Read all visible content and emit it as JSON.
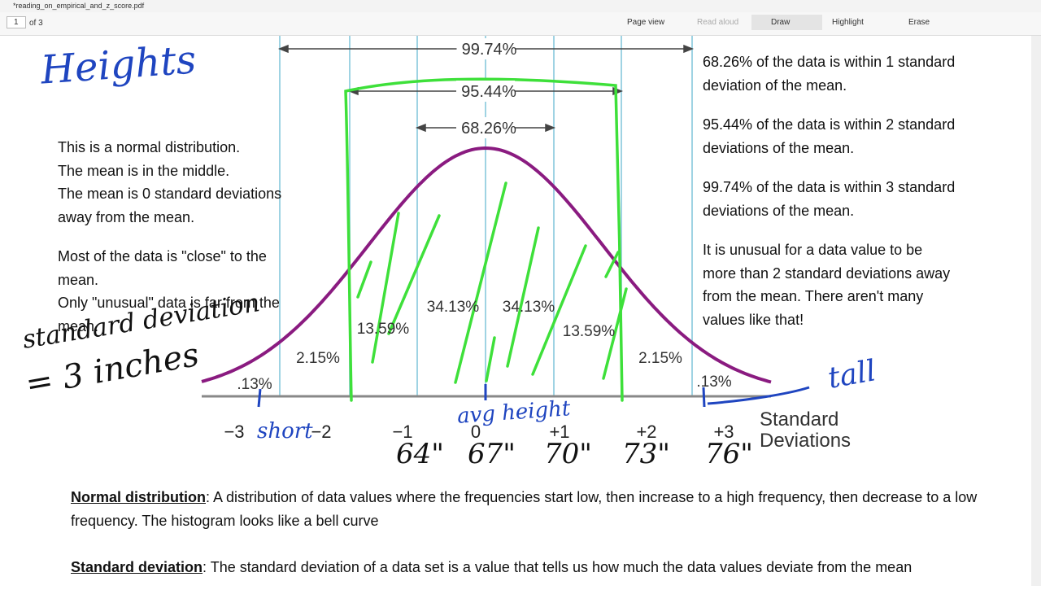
{
  "toolbar": {
    "file_name": "*reading_on_empirical_and_z_score.pdf",
    "page_number": "1",
    "page_count": "of 3",
    "buttons": [
      "Page view",
      "Read aloud",
      "Draw",
      "Highlight",
      "Erase"
    ]
  },
  "diagram": {
    "ranges": [
      "99.74%",
      "95.44%",
      "68.26%"
    ],
    "regions": [
      ".13%",
      "2.15%",
      "13.59%",
      "34.13%",
      "34.13%",
      "13.59%",
      "2.15%",
      ".13%"
    ],
    "axis_ticks": [
      "−3",
      "−2",
      "−1",
      "0",
      "+1",
      "+2",
      "+3"
    ],
    "axis_title": [
      "Standard",
      "Deviations"
    ]
  },
  "handwriting": {
    "title": "Heights",
    "note": [
      "standard deviation",
      "= 3 inches"
    ],
    "short": "short",
    "avg": "avg height",
    "tall": "tall",
    "inches": [
      "64\"",
      "67\"",
      "70\"",
      "73\"",
      "76\""
    ]
  },
  "left_text": {
    "paragraphs": [
      [
        "This is a normal distribution.",
        "The mean is in the middle.",
        "The mean is 0 standard deviations",
        "away from the mean."
      ],
      [
        "Most of the data is \"close\" to the",
        "mean.",
        "Only \"unusual\" data is far from the",
        "mean."
      ]
    ]
  },
  "right_text": {
    "paragraphs": [
      [
        "68.26% of the data is within 1 standard",
        "deviation of the mean."
      ],
      [
        "95.44% of the data is within 2 standard",
        "deviations of the mean."
      ],
      [
        "99.74% of the data is within 3 standard",
        "deviations of the mean."
      ],
      [
        "It is unusual for a data value to be",
        "more than 2 standard deviations away",
        "from the mean.  There aren't many",
        "values like that!"
      ]
    ]
  },
  "definitions": [
    {
      "term": "Normal distribution",
      "text": ":  A distribution of data values where the frequencies start low, then increase to a high frequency, then decrease to a low frequency.  The histogram looks like a bell curve"
    },
    {
      "term": "Standard deviation",
      "text": ":  The standard deviation of a data set is a value that tells us how much the data values deviate from the mean"
    }
  ]
}
